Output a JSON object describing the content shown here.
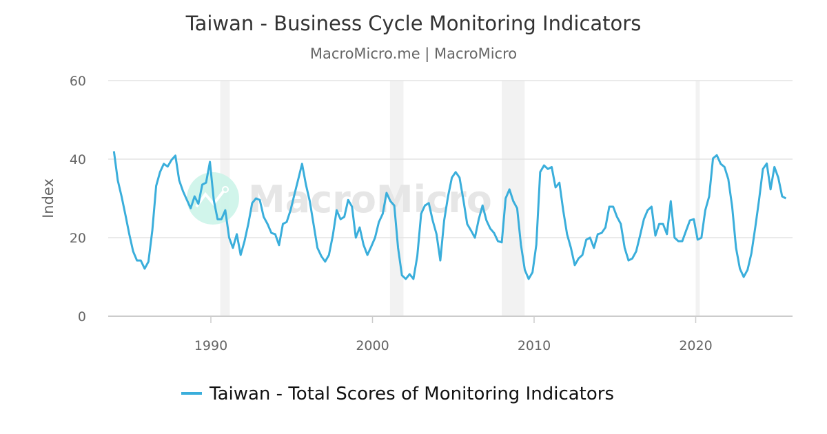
{
  "chart_data": {
    "type": "line",
    "title": "Taiwan - Business Cycle Monitoring Indicators",
    "subtitle": "MacroMicro.me | MacroMicro",
    "ylabel": "Index",
    "xlabel": "",
    "ylim": [
      0,
      60
    ],
    "yticks": [
      "0",
      "20",
      "40",
      "60"
    ],
    "xticks": [
      "1990",
      "2000",
      "2010",
      "2020"
    ],
    "grid": true,
    "legend_position": "bottom",
    "watermark": "MacroMicro",
    "recession_periods": [
      [
        "1990-08",
        "1991-03"
      ],
      [
        "2001-02",
        "2001-12"
      ],
      [
        "2008-01",
        "2009-06"
      ],
      [
        "2020-01",
        "2020-04"
      ]
    ],
    "series": [
      {
        "name": "Taiwan - Total Scores of Monitoring Indicators",
        "color": "#3aaedb",
        "x_start": "1984-01",
        "x_end": "2025-08",
        "values": [
          42,
          34.6,
          30.5,
          25.8,
          20.9,
          16.5,
          14.2,
          14.2,
          12.1,
          13.9,
          21.8,
          33.2,
          36.7,
          38.8,
          38.1,
          39.8,
          40.9,
          34.6,
          31.8,
          29.6,
          27.5,
          30.5,
          28.6,
          33.5,
          34,
          39.3,
          29.6,
          24.7,
          24.7,
          27,
          20,
          17.4,
          20.9,
          15.6,
          19.1,
          23.5,
          28.8,
          30,
          29.6,
          25.3,
          23.5,
          21.2,
          20.9,
          18.1,
          23.5,
          24,
          27,
          31,
          34.9,
          38.8,
          33.5,
          29.3,
          23.3,
          17.4,
          15.3,
          13.9,
          15.6,
          20.5,
          27,
          24.7,
          25.3,
          29.6,
          27.9,
          20,
          22.6,
          18.2,
          15.6,
          17.7,
          20,
          24,
          26.1,
          31.4,
          29.3,
          28.2,
          17.4,
          10.4,
          9.5,
          10.7,
          9.5,
          15.3,
          26.1,
          28.2,
          28.8,
          24.4,
          20.9,
          14.2,
          24.4,
          30.5,
          35.3,
          36.7,
          35.3,
          29.6,
          23.5,
          21.8,
          20,
          24.7,
          28.2,
          24.4,
          22.3,
          21.2,
          19.1,
          18.8,
          30,
          32.3,
          29.3,
          27.5,
          18.2,
          11.8,
          9.5,
          11.2,
          18.2,
          36.7,
          38.4,
          37.5,
          38,
          32.8,
          34,
          27,
          20.9,
          17.4,
          13,
          14.7,
          15.6,
          19.5,
          20,
          17.4,
          20.9,
          21.2,
          22.6,
          27.9,
          27.9,
          25.3,
          23.5,
          17.4,
          14.2,
          14.7,
          16.5,
          20.5,
          24.7,
          27,
          27.9,
          20.5,
          23.5,
          23.5,
          20.9,
          29.3,
          20,
          19.1,
          19.1,
          21.8,
          24.4,
          24.7,
          19.5,
          20,
          27,
          30.5,
          40.2,
          41,
          38.8,
          38,
          34.9,
          27.9,
          17.4,
          12.1,
          10,
          11.8,
          16,
          22.6,
          29.6,
          37.5,
          38.9,
          32.3,
          38,
          35.3,
          30.5,
          30
        ]
      }
    ]
  }
}
